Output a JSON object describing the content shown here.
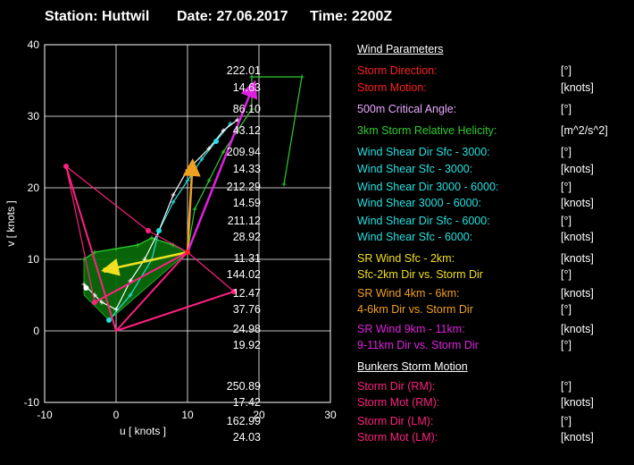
{
  "header": {
    "station": "Station: Huttwil",
    "date": "Date: 27.06.2017",
    "time": "Time: 2200Z"
  },
  "params": {
    "wind_title": "Wind Parameters",
    "bunkers_title": "Bunkers Storm Motion",
    "rows": [
      {
        "label": "Storm Direction:",
        "value": "222.01",
        "unit": "[°]",
        "color": "#ff2020"
      },
      {
        "label": "Storm Motion:",
        "value": "14.63",
        "unit": "[knots]",
        "color": "#ff2020"
      },
      {
        "label": "500m Critical Angle:",
        "value": "86.10",
        "unit": "[°]",
        "color": "#e8a8ff"
      },
      {
        "label": "3km Storm Relative Helicity:",
        "value": "43.12",
        "unit": "[m^2/s^2]",
        "color": "#2ecc2e"
      },
      {
        "label": "Wind Shear Dir Sfc - 3000:",
        "value": "209.94",
        "unit": "[°]",
        "color": "#28e0e0"
      },
      {
        "label": "Wind Shear Sfc - 3000:",
        "value": "14.33",
        "unit": "[knots]",
        "color": "#28e0e0"
      },
      {
        "label": "Wind Shear Dir 3000 - 6000:",
        "value": "212.29",
        "unit": "[°]",
        "color": "#28e0e0"
      },
      {
        "label": "Wind Shear 3000 - 6000:",
        "value": "14.59",
        "unit": "[knots]",
        "color": "#28e0e0"
      },
      {
        "label": "Wind Shear Dir Sfc - 6000:",
        "value": "211.12",
        "unit": "[°]",
        "color": "#28e0e0"
      },
      {
        "label": "Wind Shear Sfc - 6000:",
        "value": "28.92",
        "unit": "[knots]",
        "color": "#28e0e0"
      },
      {
        "label": "SR Wind Sfc - 2km:",
        "value": "11.31",
        "unit": "[knots]",
        "color": "#f0e020"
      },
      {
        "label": "Sfc-2km Dir vs. Storm Dir",
        "value": "144.02",
        "unit": "[°]",
        "color": "#f0e020"
      },
      {
        "label": "SR Wind 4km - 6km:",
        "value": "12.47",
        "unit": "[knots]",
        "color": "#f0a020"
      },
      {
        "label": "4-6km Dir vs. Storm Dir",
        "value": "37.76",
        "unit": "[°]",
        "color": "#f0a020"
      },
      {
        "label": "SR Wind 9km - 11km:",
        "value": "24.98",
        "unit": "[knots]",
        "color": "#e020e0"
      },
      {
        "label": "9-11km Dir vs. Storm Dir",
        "value": "19.92",
        "unit": "[°]",
        "color": "#e020e0"
      },
      {
        "label": "Storm Dir (RM):",
        "value": "250.89",
        "unit": "[°]",
        "color": "#ff2080"
      },
      {
        "label": "Storm Mot (RM):",
        "value": "17.42",
        "unit": "[knots]",
        "color": "#ff2080"
      },
      {
        "label": "Storm Dir (LM):",
        "value": "162.99",
        "unit": "[°]",
        "color": "#ff2080"
      },
      {
        "label": "Storm Mot (LM):",
        "value": "24.03",
        "unit": "[knots]",
        "color": "#ff2080"
      }
    ]
  },
  "chart_data": {
    "type": "line",
    "xlabel": "u  [ knots ]",
    "ylabel": "v  [ knots ]",
    "xlim": [
      -10,
      30
    ],
    "ylim": [
      -10,
      40
    ],
    "xticks": [
      -10,
      0,
      10,
      20,
      30
    ],
    "yticks": [
      -10,
      0,
      10,
      20,
      30,
      40
    ],
    "grid": true,
    "series": [
      {
        "role": "green-low-hodograph",
        "color": "#2ecc2e",
        "points": [
          [
            -4.5,
            10
          ],
          [
            -3,
            11
          ],
          [
            0,
            11.5
          ],
          [
            3,
            12
          ],
          [
            5,
            13
          ],
          [
            8,
            12
          ],
          [
            10,
            11
          ]
        ]
      },
      {
        "role": "green-upper-hodograph",
        "color": "#2ecc2e",
        "points": [
          [
            10,
            11
          ],
          [
            11,
            17
          ],
          [
            13,
            21
          ],
          [
            15,
            25
          ],
          [
            17,
            28
          ],
          [
            19,
            31
          ],
          [
            19,
            35.5
          ],
          [
            26,
            35.5
          ],
          [
            23.5,
            20.5
          ]
        ]
      },
      {
        "role": "cyan-hodograph",
        "color": "#28e0e0",
        "points": [
          [
            -1,
            1.5
          ],
          [
            2,
            5
          ],
          [
            5,
            10
          ],
          [
            6,
            14
          ],
          [
            8,
            18
          ],
          [
            10,
            21
          ],
          [
            12,
            24
          ],
          [
            14,
            26.5
          ],
          [
            16,
            29
          ]
        ]
      },
      {
        "role": "white-hodograph",
        "color": "#ffffff",
        "points": [
          [
            -4.5,
            6.5
          ],
          [
            -3,
            5
          ],
          [
            -2,
            4
          ],
          [
            0,
            3
          ],
          [
            2,
            7
          ],
          [
            4,
            10
          ],
          [
            6,
            14
          ],
          [
            8,
            19
          ],
          [
            10,
            22.5
          ],
          [
            13,
            25.5
          ],
          [
            15,
            28
          ],
          [
            17,
            29.5
          ]
        ]
      },
      {
        "role": "yellow-vector",
        "color": "#f0e020",
        "points": [
          [
            10,
            11
          ],
          [
            -1.5,
            8.5
          ]
        ]
      },
      {
        "role": "orange-vector",
        "color": "#f0a020",
        "points": [
          [
            10,
            11
          ],
          [
            10.7,
            23.5
          ]
        ]
      },
      {
        "role": "magenta-vector",
        "color": "#e020e0",
        "points": [
          [
            10,
            11
          ],
          [
            19.3,
            34.5
          ]
        ]
      },
      {
        "role": "red-storm-motion",
        "color": "#ff2020",
        "points": [
          [
            0,
            0
          ],
          [
            10,
            11
          ]
        ]
      },
      {
        "role": "pink-bunkers",
        "color": "#ff2080",
        "points": [
          [
            -7,
            23
          ],
          [
            0,
            0
          ],
          [
            16.5,
            5.5
          ],
          [
            10,
            11
          ],
          [
            4.5,
            14
          ],
          [
            -7,
            23
          ],
          [
            -3,
            4
          ],
          [
            10,
            11
          ]
        ]
      }
    ],
    "markers": [
      {
        "name": "LM",
        "x": -7,
        "y": 23,
        "color": "#ff2080"
      },
      {
        "name": "RM",
        "x": 16.5,
        "y": 5.5,
        "color": "#ff2080"
      },
      {
        "name": "mean",
        "x": 4.5,
        "y": 14,
        "color": "#ff2080"
      },
      {
        "name": "sfc",
        "x": -3,
        "y": 4,
        "color": "#ff2080"
      },
      {
        "name": "cyan-start",
        "x": -1,
        "y": 1.5,
        "color": "#28e0e0"
      },
      {
        "name": "cyan-mid",
        "x": 6,
        "y": 14,
        "color": "#28e0e0"
      },
      {
        "name": "cyan-end",
        "x": 14,
        "y": 26.5,
        "color": "#28e0e0"
      },
      {
        "name": "yellow-end",
        "x": -1.5,
        "y": 8.5,
        "color": "#f0e020"
      },
      {
        "name": "orange-end",
        "x": 10.7,
        "y": 23,
        "color": "#f0a020"
      },
      {
        "name": "red-end",
        "x": 10,
        "y": 11,
        "color": "#ff2020"
      },
      {
        "name": "white-start",
        "x": -4.2,
        "y": 6,
        "color": "#ffffff"
      }
    ]
  }
}
